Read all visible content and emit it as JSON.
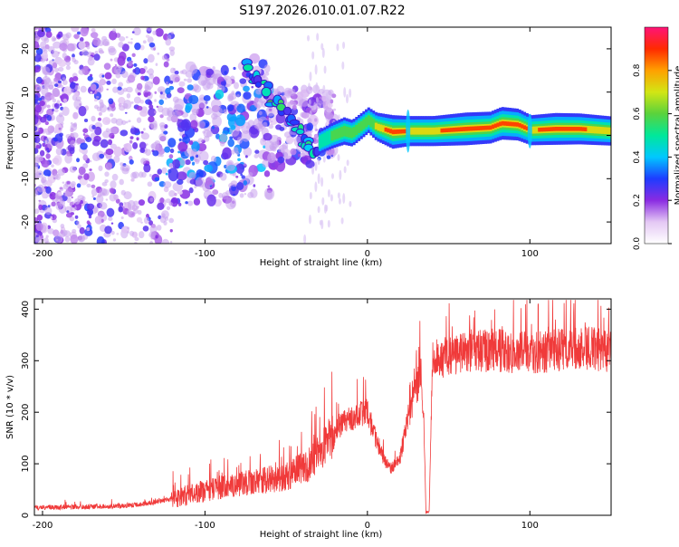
{
  "title": "S197.2026.010.01.07.R22",
  "chart_data": [
    {
      "type": "heatmap",
      "name": "spectrogram",
      "xlabel": "Height of straight line (km)",
      "ylabel": "Frequency (Hz)",
      "xlim": [
        -205,
        150
      ],
      "ylim": [
        -25,
        25
      ],
      "xticks": [
        -200,
        -100,
        0,
        100
      ],
      "xtick_labels": [
        "-200",
        "-100",
        "0",
        "100"
      ],
      "yticks": [
        -20,
        -10,
        0,
        10,
        20
      ],
      "ytick_labels": [
        "-20",
        "-10",
        "0",
        "10",
        "20"
      ],
      "colorbar": {
        "label": "Normalized spectral amplitude",
        "range": [
          0,
          1
        ],
        "ticks": [
          0.0,
          0.2,
          0.4,
          0.6,
          0.8
        ],
        "tick_labels": [
          "0.0",
          "0.2",
          "0.4",
          "0.6",
          "0.8"
        ],
        "colors": [
          "#ffffff",
          "#e4c8f4",
          "#8a2be2",
          "#1e3cff",
          "#00c8ff",
          "#00e89a",
          "#5ad23c",
          "#d2e614",
          "#ffa000",
          "#ff2a00",
          "#ff1478"
        ]
      },
      "ridge": [
        {
          "x": -30,
          "freq": -1.5,
          "amp": 0.35
        },
        {
          "x": -22,
          "freq": 0.0,
          "amp": 0.45
        },
        {
          "x": -15,
          "freq": 1.0,
          "amp": 0.55
        },
        {
          "x": -10,
          "freq": 0.5,
          "amp": 0.5
        },
        {
          "x": 0,
          "freq": 3.5,
          "amp": 0.45
        },
        {
          "x": 5,
          "freq": 2.0,
          "amp": 0.6
        },
        {
          "x": 15,
          "freq": 0.8,
          "amp": 0.9
        },
        {
          "x": 25,
          "freq": 1.0,
          "amp": 0.7
        },
        {
          "x": 40,
          "freq": 1.0,
          "amp": 0.7
        },
        {
          "x": 60,
          "freq": 1.5,
          "amp": 0.85
        },
        {
          "x": 75,
          "freq": 1.8,
          "amp": 0.8
        },
        {
          "x": 82,
          "freq": 2.8,
          "amp": 0.85
        },
        {
          "x": 92,
          "freq": 2.5,
          "amp": 0.8
        },
        {
          "x": 100,
          "freq": 1.2,
          "amp": 0.7
        },
        {
          "x": 115,
          "freq": 1.5,
          "amp": 0.8
        },
        {
          "x": 130,
          "freq": 1.5,
          "amp": 0.75
        },
        {
          "x": 150,
          "freq": 1.0,
          "amp": 0.65
        }
      ]
    },
    {
      "type": "line",
      "name": "snr",
      "xlabel": "Height of straight line (km)",
      "ylabel": "SNR (10 * v/v)",
      "xlim": [
        -205,
        150
      ],
      "ylim": [
        0,
        420
      ],
      "xticks": [
        -200,
        -100,
        0,
        100
      ],
      "xtick_labels": [
        "-200",
        "-100",
        "0",
        "100"
      ],
      "yticks": [
        0,
        100,
        200,
        300,
        400
      ],
      "ytick_labels": [
        "0",
        "100",
        "200",
        "300",
        "400"
      ],
      "color": "#f03a3a",
      "trend": [
        {
          "x": -205,
          "y": 15
        },
        {
          "x": -150,
          "y": 18
        },
        {
          "x": -130,
          "y": 25
        },
        {
          "x": -110,
          "y": 40
        },
        {
          "x": -90,
          "y": 55
        },
        {
          "x": -70,
          "y": 65
        },
        {
          "x": -50,
          "y": 75
        },
        {
          "x": -35,
          "y": 100
        },
        {
          "x": -25,
          "y": 140
        },
        {
          "x": -15,
          "y": 180
        },
        {
          "x": -5,
          "y": 195
        },
        {
          "x": 0,
          "y": 200
        },
        {
          "x": 5,
          "y": 150
        },
        {
          "x": 10,
          "y": 110
        },
        {
          "x": 15,
          "y": 90
        },
        {
          "x": 20,
          "y": 110
        },
        {
          "x": 25,
          "y": 190
        },
        {
          "x": 30,
          "y": 240
        },
        {
          "x": 33,
          "y": 280
        },
        {
          "x": 35,
          "y": 160
        },
        {
          "x": 36,
          "y": 5
        },
        {
          "x": 38,
          "y": 8
        },
        {
          "x": 40,
          "y": 300
        },
        {
          "x": 60,
          "y": 320
        },
        {
          "x": 80,
          "y": 320
        },
        {
          "x": 100,
          "y": 315
        },
        {
          "x": 130,
          "y": 325
        },
        {
          "x": 150,
          "y": 320
        }
      ]
    }
  ]
}
